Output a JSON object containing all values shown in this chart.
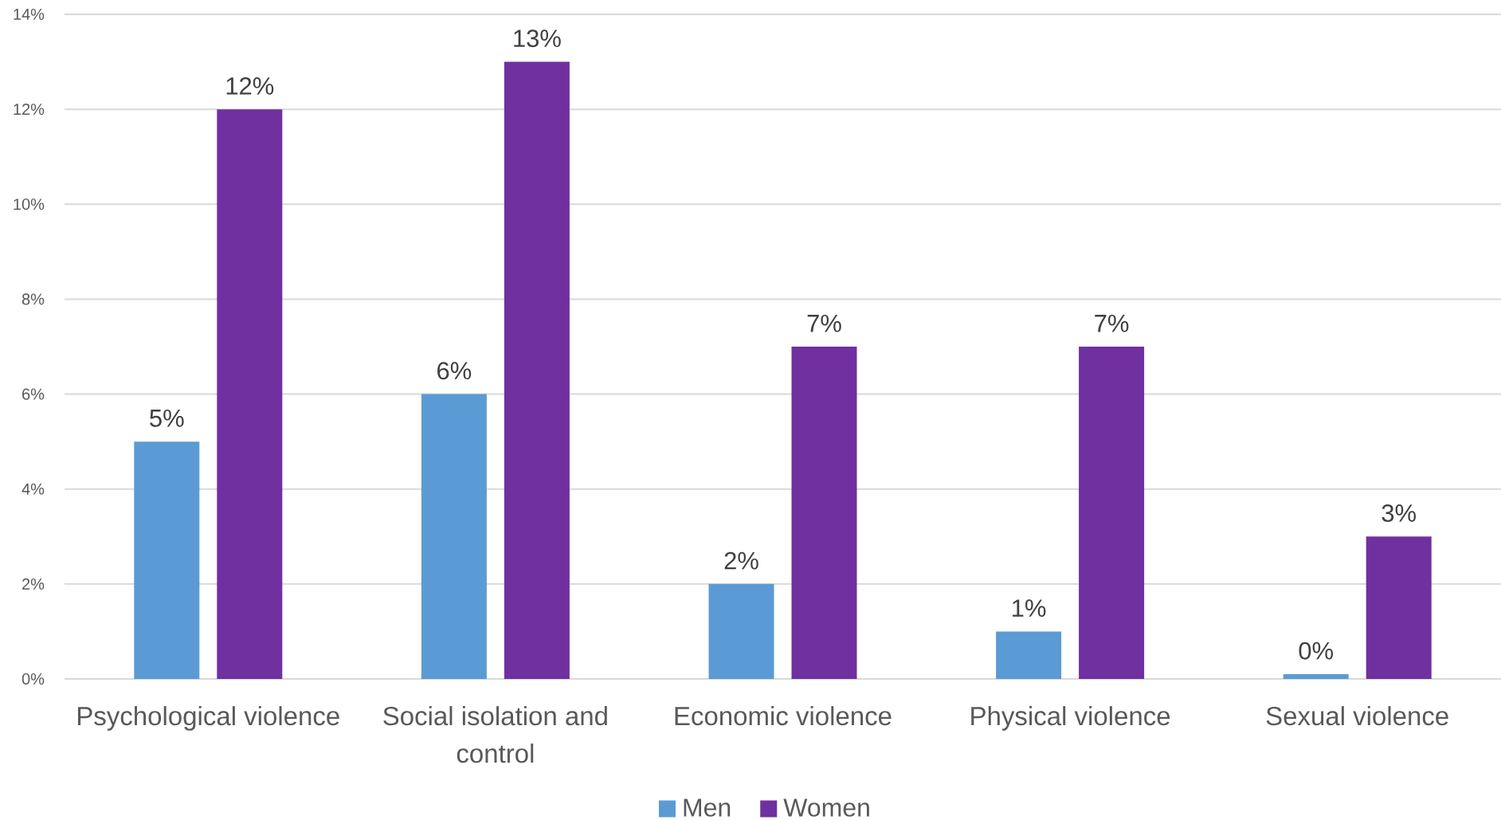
{
  "chart_data": {
    "type": "bar",
    "categories": [
      "Psychological violence",
      "Social isolation and control",
      "Economic violence",
      "Physical violence",
      "Sexual violence"
    ],
    "series": [
      {
        "name": "Men",
        "color": "#5b9bd5",
        "values": [
          5,
          6,
          2,
          1,
          0.1
        ],
        "value_labels": [
          "5%",
          "6%",
          "2%",
          "1%",
          "0%"
        ]
      },
      {
        "name": "Women",
        "color": "#7030a0",
        "values": [
          12,
          13,
          7,
          7,
          3
        ],
        "value_labels": [
          "12%",
          "13%",
          "7%",
          "7%",
          "3%"
        ]
      }
    ],
    "ylim": [
      0,
      14
    ],
    "yticks": [
      {
        "value": 0,
        "label": "0%"
      },
      {
        "value": 2,
        "label": "2%"
      },
      {
        "value": 4,
        "label": "4%"
      },
      {
        "value": 6,
        "label": "6%"
      },
      {
        "value": 8,
        "label": "8%"
      },
      {
        "value": 10,
        "label": "10%"
      },
      {
        "value": 12,
        "label": "12%"
      },
      {
        "value": 14,
        "label": "14%"
      }
    ],
    "grid": "y",
    "legend": "bottom"
  }
}
